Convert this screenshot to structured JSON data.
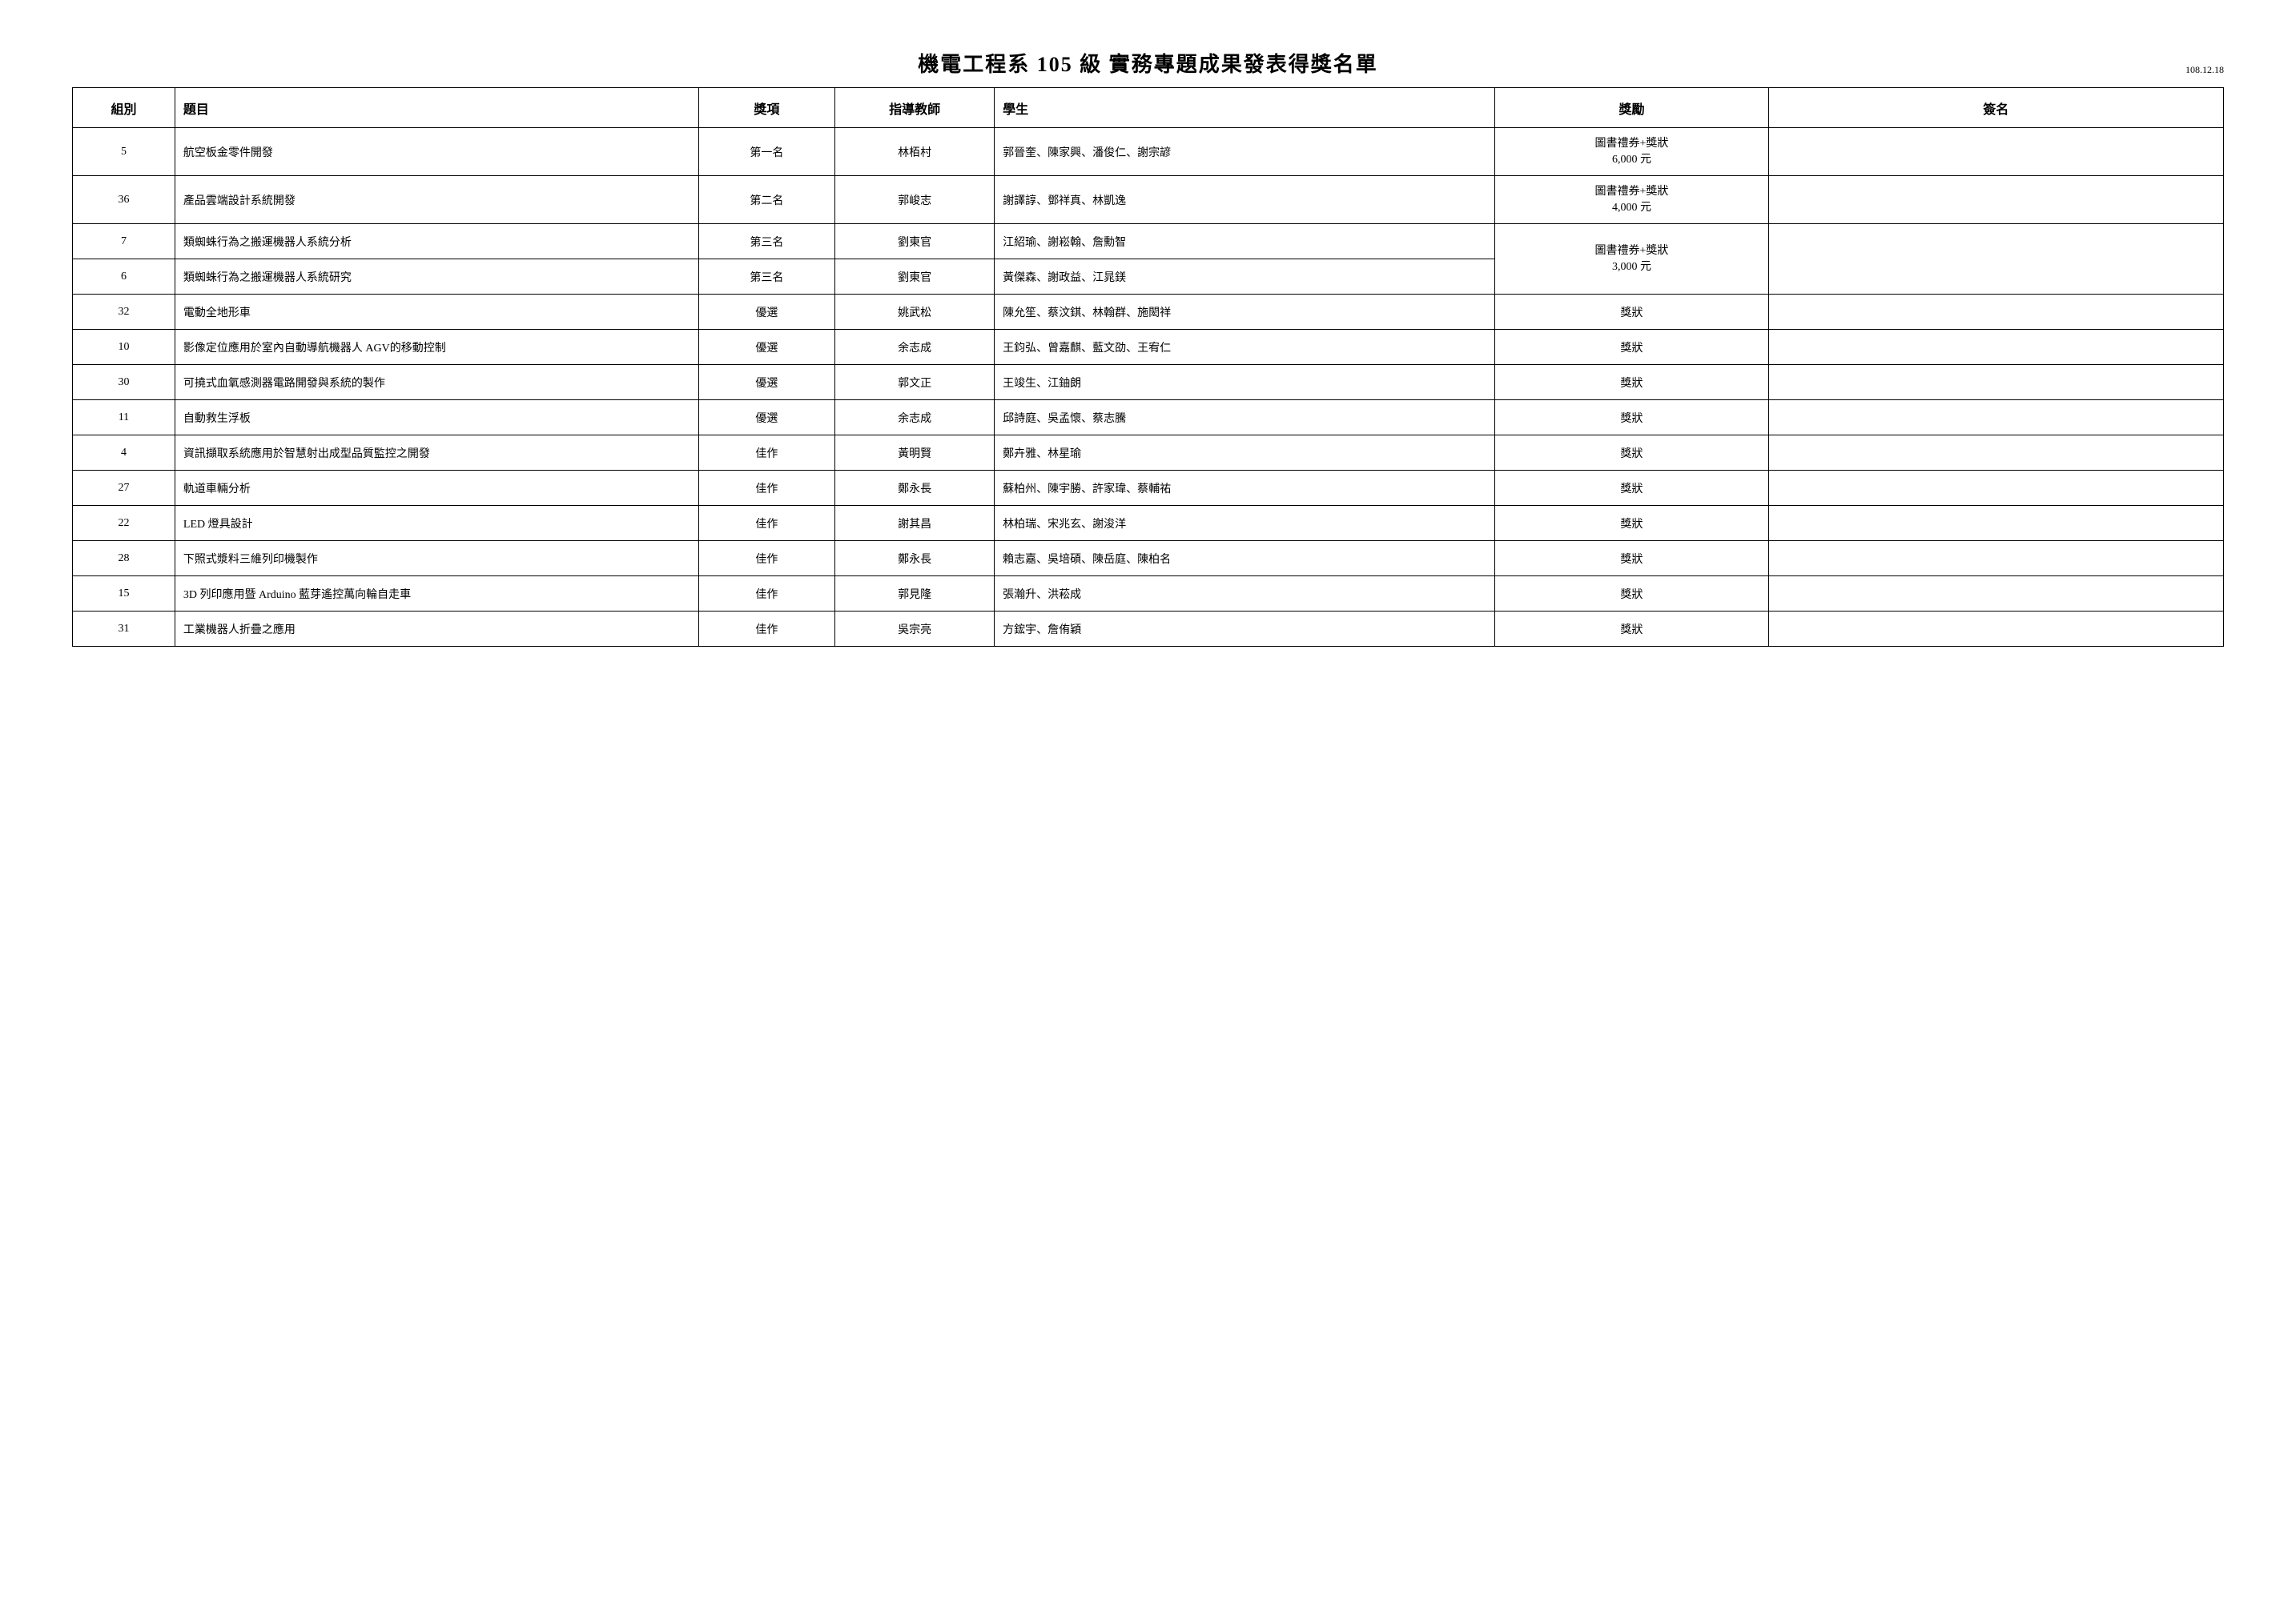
{
  "title": "機電工程系 105 級 實務專題成果發表得獎名單",
  "date": "108.12.18",
  "headers": {
    "group": "組別",
    "topic": "題目",
    "award": "獎項",
    "teacher": "指導教師",
    "students": "學生",
    "reward": "獎勵",
    "sign": "簽名"
  },
  "reward_merged": {
    "line1": "圖書禮券+獎狀",
    "line2": "3,000 元"
  },
  "rows": [
    {
      "group": "5",
      "topic": "航空板金零件開發",
      "award": "第一名",
      "teacher": "林栢村",
      "students": "郭晉奎、陳家興、潘俊仁、謝宗諺",
      "reward_l1": "圖書禮券+獎狀",
      "reward_l2": "6,000 元"
    },
    {
      "group": "36",
      "topic": "產品雲端設計系統開發",
      "award": "第二名",
      "teacher": "郭峻志",
      "students": "謝譯諄、鄧祥真、林凱逸",
      "reward_l1": "圖書禮券+獎狀",
      "reward_l2": "4,000 元"
    },
    {
      "group": "7",
      "topic": "類蜘蛛行為之搬運機器人系統分析",
      "award": "第三名",
      "teacher": "劉東官",
      "students": "江紹瑜、謝崧翰、詹勳智"
    },
    {
      "group": "6",
      "topic": "類蜘蛛行為之搬運機器人系統研究",
      "award": "第三名",
      "teacher": "劉東官",
      "students": "黃傑森、謝政益、江晁鎂"
    },
    {
      "group": "32",
      "topic": "電動全地形車",
      "award": "優選",
      "teacher": "姚武松",
      "students": "陳允笙、蔡汶錤、林翰群、施閎祥",
      "reward": "獎狀"
    },
    {
      "group": "10",
      "topic": "影像定位應用於室內自動導航機器人 AGV的移動控制",
      "award": "優選",
      "teacher": "余志成",
      "students": "王鈞弘、曾嘉麒、藍文劭、王宥仁",
      "reward": "獎狀"
    },
    {
      "group": "30",
      "topic": "可撓式血氧感測器電路開發與系統的製作",
      "award": "優選",
      "teacher": "郭文正",
      "students": "王竣生、江鈾朗",
      "reward": "獎狀"
    },
    {
      "group": "11",
      "topic": "自動救生浮板",
      "award": "優選",
      "teacher": "余志成",
      "students": "邱詩庭、吳孟懷、蔡志騰",
      "reward": "獎狀"
    },
    {
      "group": "4",
      "topic": "資訊擷取系統應用於智慧射出成型品質監控之開發",
      "award": "佳作",
      "teacher": "黃明賢",
      "students": "鄭卉雅、林星瑜",
      "reward": "獎狀"
    },
    {
      "group": "27",
      "topic": "軌道車輛分析",
      "award": "佳作",
      "teacher": "鄭永長",
      "students": "蘇柏州、陳宇勝、許家瑋、蔡輔祐",
      "reward": "獎狀"
    },
    {
      "group": "22",
      "topic": "LED 燈具設計",
      "award": "佳作",
      "teacher": "謝其昌",
      "students": "林柏瑞、宋兆玄、謝浚洋",
      "reward": "獎狀"
    },
    {
      "group": "28",
      "topic": "下照式漿料三維列印機製作",
      "award": "佳作",
      "teacher": "鄭永長",
      "students": "賴志嘉、吳培碩、陳岳庭、陳柏名",
      "reward": "獎狀"
    },
    {
      "group": "15",
      "topic": "3D 列印應用暨 Arduino 藍芽遙控萬向輪自走車",
      "award": "佳作",
      "teacher": "郭見隆",
      "students": "張瀚升、洪菘成",
      "reward": "獎狀"
    },
    {
      "group": "31",
      "topic": "工業機器人折疊之應用",
      "award": "佳作",
      "teacher": "吳宗亮",
      "students": "方鋐宇、詹侑穎",
      "reward": "獎狀"
    }
  ]
}
